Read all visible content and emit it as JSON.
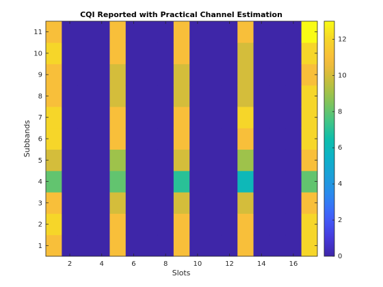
{
  "chart_data": {
    "type": "heatmap",
    "title": "CQI Reported with Practical Channel Estimation",
    "xlabel": "Slots",
    "ylabel": "Subbands",
    "x_ticks": [
      2,
      4,
      6,
      8,
      10,
      12,
      14,
      16
    ],
    "y_ticks": [
      1,
      2,
      3,
      4,
      5,
      6,
      7,
      8,
      9,
      10,
      11
    ],
    "x_range": [
      0.5,
      17.5
    ],
    "y_range": [
      0.5,
      11.5
    ],
    "colormap": "parula",
    "color_range": [
      0,
      13
    ],
    "colorbar_ticks": [
      0,
      2,
      4,
      6,
      8,
      10,
      12
    ],
    "columns": [
      {
        "slot": 1,
        "values": [
          11,
          12,
          11,
          8,
          10,
          12,
          12,
          11,
          11,
          12,
          11
        ]
      },
      {
        "slot": 5,
        "values": [
          11,
          11,
          10,
          8,
          9,
          11,
          11,
          10,
          10,
          11,
          11
        ]
      },
      {
        "slot": 9,
        "values": [
          11,
          11,
          10,
          7,
          10,
          11,
          11,
          10,
          10,
          11,
          11
        ]
      },
      {
        "slot": 13,
        "values": [
          11,
          11,
          10,
          6,
          9,
          11,
          12,
          10,
          10,
          10,
          11
        ]
      },
      {
        "slot": 17,
        "values": [
          12,
          12,
          11,
          8,
          11,
          12,
          12,
          12,
          11,
          12,
          13
        ]
      }
    ],
    "default_value": 0,
    "grid": false
  }
}
